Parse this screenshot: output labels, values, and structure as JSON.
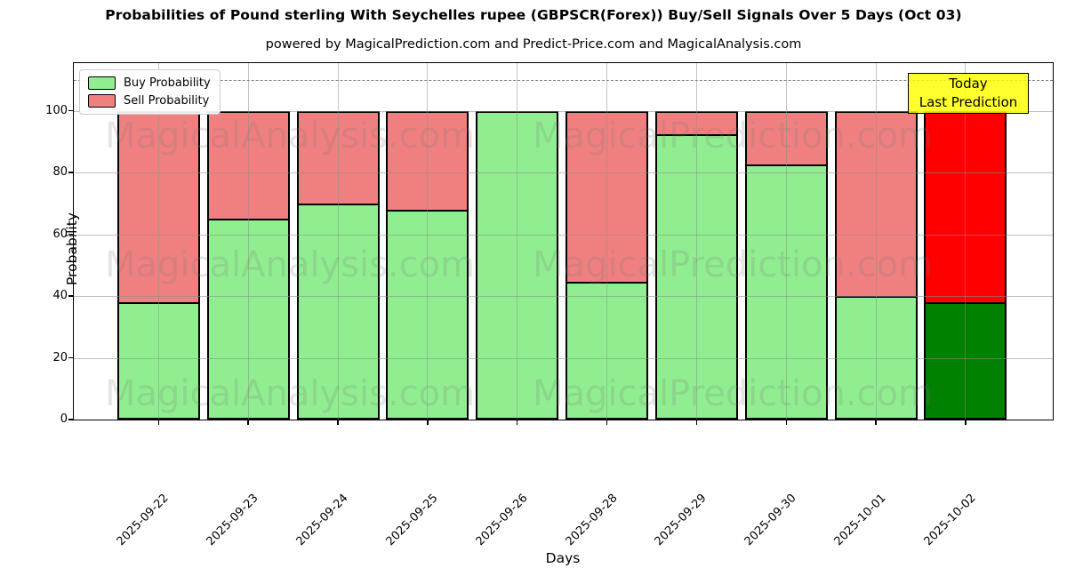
{
  "title": "Probabilities of Pound sterling With Seychelles rupee (GBPSCR(Forex)) Buy/Sell Signals Over 5 Days (Oct 03)",
  "subtitle": "powered by MagicalPrediction.com and Predict-Price.com and MagicalAnalysis.com",
  "legend": {
    "items": [
      {
        "label": "Buy Probability",
        "color": "#90EE90"
      },
      {
        "label": "Sell Probability",
        "color": "#F08080"
      }
    ]
  },
  "annotation": {
    "lines": [
      "Today",
      "Last Prediction"
    ],
    "bg_color": "#FFFF00"
  },
  "watermarks": {
    "left": "MagicalAnalysis.com",
    "right": "MagicalPrediction.com"
  },
  "axes": {
    "xlabel": "Days",
    "ylabel": "Probability",
    "yticks": [
      0,
      20,
      40,
      60,
      80,
      100
    ],
    "ylim": [
      0,
      115.4
    ],
    "threshold_line_y": 110,
    "grid": true
  },
  "colors": {
    "buy": "#90EE90",
    "sell": "#F08080",
    "today_buy": "#008000",
    "today_sell": "#FF0000",
    "bar_edge": "#000000",
    "grid": "#8C8C8C",
    "threshold": "#7F7F7F"
  },
  "chart_data": {
    "type": "bar",
    "stacked": true,
    "title": "Probabilities of Pound sterling With Seychelles rupee (GBPSCR(Forex)) Buy/Sell Signals Over 5 Days (Oct 03)",
    "xlabel": "Days",
    "ylabel": "Probability",
    "ylim": [
      0,
      115.4
    ],
    "legend_position": "upper left",
    "categories": [
      "2025-09-22",
      "2025-09-23",
      "2025-09-24",
      "2025-09-25",
      "2025-09-26",
      "2025-09-28",
      "2025-09-29",
      "2025-09-30",
      "2025-10-01",
      "2025-10-02"
    ],
    "series": [
      {
        "name": "Buy Probability",
        "color": "#90EE90",
        "values": [
          38,
          65,
          70,
          68,
          100,
          44.5,
          92.5,
          82.5,
          40,
          38
        ]
      },
      {
        "name": "Sell Probability",
        "color": "#F08080",
        "values": [
          62,
          35,
          30,
          32,
          0,
          55.5,
          7.5,
          17.5,
          60,
          62
        ]
      }
    ],
    "today": {
      "index": 9,
      "category": "2025-10-02",
      "buy_color": "#008000",
      "sell_color": "#FF0000"
    }
  }
}
